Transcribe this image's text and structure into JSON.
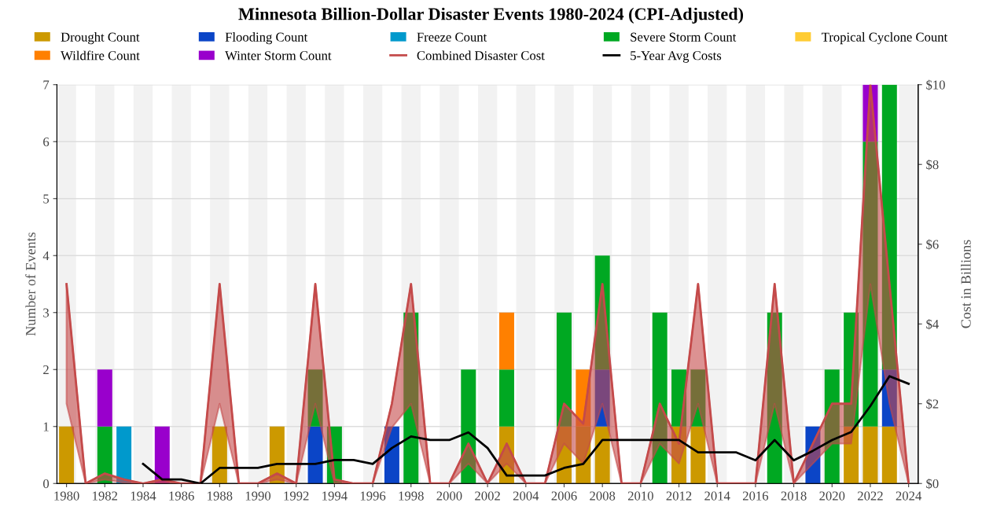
{
  "chart_data": {
    "type": "bar",
    "title": "Minnesota Billion-Dollar Disaster Events 1980-2024 (CPI-Adjusted)",
    "ylabel": "Number of Events",
    "y2label": "Cost in Billions",
    "x": [
      1980,
      1981,
      1982,
      1983,
      1984,
      1985,
      1986,
      1987,
      1988,
      1989,
      1990,
      1991,
      1992,
      1993,
      1994,
      1995,
      1996,
      1997,
      1998,
      1999,
      2000,
      2001,
      2002,
      2003,
      2004,
      2005,
      2006,
      2007,
      2008,
      2009,
      2010,
      2011,
      2012,
      2013,
      2014,
      2015,
      2016,
      2017,
      2018,
      2019,
      2020,
      2021,
      2022,
      2023,
      2024
    ],
    "stacked": true,
    "series": [
      {
        "name": "Drought Count",
        "color": "#cc9900",
        "values": [
          1,
          0,
          0,
          0,
          0,
          0,
          0,
          0,
          1,
          0,
          0,
          1,
          0,
          0,
          0,
          0,
          0,
          0,
          0,
          0,
          0,
          0,
          0,
          1,
          0,
          0,
          1,
          1,
          1,
          0,
          0,
          0,
          1,
          1,
          0,
          0,
          0,
          0,
          0,
          0,
          0,
          1,
          1,
          1,
          0
        ]
      },
      {
        "name": "Flooding Count",
        "color": "#0b45c7",
        "values": [
          0,
          0,
          0,
          0,
          0,
          0,
          0,
          0,
          0,
          0,
          0,
          0,
          0,
          1,
          0,
          0,
          0,
          1,
          0,
          0,
          0,
          0,
          0,
          0,
          0,
          0,
          0,
          0,
          1,
          0,
          0,
          0,
          0,
          0,
          0,
          0,
          0,
          0,
          0,
          1,
          0,
          0,
          0,
          1,
          0
        ]
      },
      {
        "name": "Freeze Count",
        "color": "#0099cc",
        "values": [
          0,
          0,
          0,
          1,
          0,
          0,
          0,
          0,
          0,
          0,
          0,
          0,
          0,
          0,
          0,
          0,
          0,
          0,
          0,
          0,
          0,
          0,
          0,
          0,
          0,
          0,
          0,
          0,
          0,
          0,
          0,
          0,
          0,
          0,
          0,
          0,
          0,
          0,
          0,
          0,
          0,
          0,
          0,
          0,
          0
        ]
      },
      {
        "name": "Severe Storm Count",
        "color": "#00a822",
        "values": [
          0,
          0,
          1,
          0,
          0,
          0,
          0,
          0,
          0,
          0,
          0,
          0,
          0,
          1,
          1,
          0,
          0,
          0,
          3,
          0,
          0,
          2,
          0,
          1,
          0,
          0,
          2,
          0,
          2,
          0,
          0,
          3,
          1,
          1,
          0,
          0,
          0,
          3,
          0,
          0,
          2,
          2,
          5,
          5,
          0
        ]
      },
      {
        "name": "Tropical Cyclone Count",
        "color": "#ffcc33",
        "values": [
          0,
          0,
          0,
          0,
          0,
          0,
          0,
          0,
          0,
          0,
          0,
          0,
          0,
          0,
          0,
          0,
          0,
          0,
          0,
          0,
          0,
          0,
          0,
          0,
          0,
          0,
          0,
          0,
          0,
          0,
          0,
          0,
          0,
          0,
          0,
          0,
          0,
          0,
          0,
          0,
          0,
          0,
          0,
          0,
          0
        ]
      },
      {
        "name": "Wildfire Count",
        "color": "#ff8000",
        "values": [
          0,
          0,
          0,
          0,
          0,
          0,
          0,
          0,
          0,
          0,
          0,
          0,
          0,
          0,
          0,
          0,
          0,
          0,
          0,
          0,
          0,
          0,
          0,
          1,
          0,
          0,
          0,
          1,
          0,
          0,
          0,
          0,
          0,
          0,
          0,
          0,
          0,
          0,
          0,
          0,
          0,
          0,
          0,
          0,
          0
        ]
      },
      {
        "name": "Winter Storm Count",
        "color": "#9900cc",
        "values": [
          0,
          0,
          1,
          0,
          0,
          1,
          0,
          0,
          0,
          0,
          0,
          0,
          0,
          0,
          0,
          0,
          0,
          0,
          0,
          0,
          0,
          0,
          0,
          0,
          0,
          0,
          0,
          0,
          0,
          0,
          0,
          0,
          0,
          0,
          0,
          0,
          0,
          0,
          0,
          0,
          0,
          0,
          1,
          0,
          0
        ]
      },
      {
        "name": "Combined Disaster Cost",
        "type": "line",
        "axis": "y2",
        "color": "#c44a4a",
        "values": [
          5,
          0,
          0.25,
          0.1,
          0,
          0.1,
          0,
          0,
          5,
          0,
          0,
          0.25,
          0,
          5,
          0.1,
          0,
          0,
          2,
          5,
          0,
          0,
          1,
          0,
          1,
          0,
          0,
          2,
          1.5,
          5,
          0,
          0,
          2,
          1,
          5,
          0,
          0,
          0,
          5,
          0,
          1,
          2,
          2,
          10,
          5,
          0
        ],
        "lower": [
          2,
          0,
          0.1,
          0.02,
          0,
          0.03,
          0,
          0,
          2,
          0,
          0,
          0.1,
          0,
          2,
          0,
          0,
          0,
          1.4,
          2,
          0,
          0,
          0.5,
          0,
          0.5,
          0,
          0,
          1,
          0.5,
          2,
          0,
          0,
          1,
          0.5,
          2,
          0,
          0,
          0,
          2,
          0,
          0.5,
          1,
          1,
          5,
          2,
          0
        ],
        "upper": [
          5,
          0,
          0.25,
          0.1,
          0,
          0.1,
          0,
          0,
          5,
          0,
          0,
          0.25,
          0,
          5,
          0.1,
          0,
          0,
          2,
          5,
          0,
          0,
          1,
          0,
          1,
          0,
          0,
          2,
          1.5,
          5,
          0,
          0,
          2,
          1,
          5,
          0,
          0,
          0,
          5,
          0,
          1,
          2,
          2,
          10,
          5,
          0
        ]
      },
      {
        "name": "5-Year Avg Costs",
        "type": "line",
        "axis": "y2",
        "color": "#000000",
        "values": [
          null,
          null,
          null,
          null,
          0.49,
          0.1,
          0.1,
          0,
          0.39,
          0.39,
          0.39,
          0.49,
          0.49,
          0.49,
          0.59,
          0.59,
          0.49,
          0.89,
          1.18,
          1.09,
          1.09,
          1.28,
          0.89,
          0.2,
          0.2,
          0.2,
          0.39,
          0.49,
          1.09,
          1.09,
          1.09,
          1.09,
          1.09,
          0.78,
          0.78,
          0.78,
          0.58,
          1.09,
          0.58,
          0.82,
          1.09,
          1.29,
          1.94,
          2.69,
          2.5
        ]
      }
    ],
    "xlim": [
      1979.5,
      2024.5
    ],
    "xticks": [
      1980,
      1982,
      1984,
      1986,
      1988,
      1990,
      1992,
      1994,
      1996,
      1998,
      2000,
      2002,
      2004,
      2006,
      2008,
      2010,
      2012,
      2014,
      2016,
      2018,
      2020,
      2022,
      2024
    ],
    "ylim": [
      0,
      7
    ],
    "yticks": [
      0,
      1,
      2,
      3,
      4,
      5,
      6,
      7
    ],
    "y2lim": [
      0,
      10
    ],
    "y2ticks": [
      {
        "value": 0,
        "label": "$0"
      },
      {
        "value": 2,
        "label": "$2"
      },
      {
        "value": 4,
        "label": "$4"
      },
      {
        "value": 6,
        "label": "$6"
      },
      {
        "value": 8,
        "label": "$8"
      },
      {
        "value": 10,
        "label": "$10"
      }
    ],
    "bands": [
      {
        "axis": "x",
        "from": 1979.5,
        "to": 1980.5,
        "color": "#f2f2f2"
      },
      {
        "axis": "x",
        "from": 1981.5,
        "to": 1982.5,
        "color": "#f2f2f2"
      },
      {
        "axis": "x",
        "from": 1983.5,
        "to": 1984.5,
        "color": "#f2f2f2"
      },
      {
        "axis": "x",
        "from": 1985.5,
        "to": 1986.5,
        "color": "#f2f2f2"
      },
      {
        "axis": "x",
        "from": 1987.5,
        "to": 1988.5,
        "color": "#f2f2f2"
      },
      {
        "axis": "x",
        "from": 1989.5,
        "to": 1990.5,
        "color": "#f2f2f2"
      },
      {
        "axis": "x",
        "from": 1991.5,
        "to": 1992.5,
        "color": "#f2f2f2"
      },
      {
        "axis": "x",
        "from": 1993.5,
        "to": 1994.5,
        "color": "#f2f2f2"
      },
      {
        "axis": "x",
        "from": 1995.5,
        "to": 1996.5,
        "color": "#f2f2f2"
      },
      {
        "axis": "x",
        "from": 1997.5,
        "to": 1998.5,
        "color": "#f2f2f2"
      },
      {
        "axis": "x",
        "from": 1999.5,
        "to": 2000.5,
        "color": "#f2f2f2"
      },
      {
        "axis": "x",
        "from": 2001.5,
        "to": 2002.5,
        "color": "#f2f2f2"
      },
      {
        "axis": "x",
        "from": 2003.5,
        "to": 2004.5,
        "color": "#f2f2f2"
      },
      {
        "axis": "x",
        "from": 2005.5,
        "to": 2006.5,
        "color": "#f2f2f2"
      },
      {
        "axis": "x",
        "from": 2007.5,
        "to": 2008.5,
        "color": "#f2f2f2"
      },
      {
        "axis": "x",
        "from": 2009.5,
        "to": 2010.5,
        "color": "#f2f2f2"
      },
      {
        "axis": "x",
        "from": 2011.5,
        "to": 2012.5,
        "color": "#f2f2f2"
      },
      {
        "axis": "x",
        "from": 2013.5,
        "to": 2014.5,
        "color": "#f2f2f2"
      },
      {
        "axis": "x",
        "from": 2015.5,
        "to": 2016.5,
        "color": "#f2f2f2"
      },
      {
        "axis": "x",
        "from": 2017.5,
        "to": 2018.5,
        "color": "#f2f2f2"
      },
      {
        "axis": "x",
        "from": 2019.5,
        "to": 2020.5,
        "color": "#f2f2f2"
      },
      {
        "axis": "x",
        "from": 2021.5,
        "to": 2022.5,
        "color": "#f2f2f2"
      },
      {
        "axis": "x",
        "from": 2023.5,
        "to": 2024.5,
        "color": "#f2f2f2"
      }
    ],
    "grid": "y",
    "legend": "top",
    "marker": "none",
    "line_style": "solid"
  }
}
